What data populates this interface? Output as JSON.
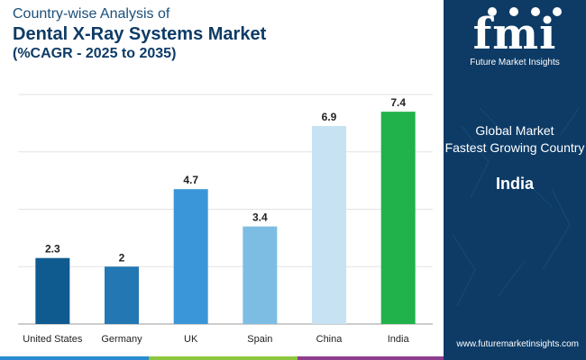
{
  "title": {
    "line1": "Country-wise Analysis of",
    "line2": "Dental X-Ray Systems Market",
    "line3": "(%CAGR - 2025 to 2035)"
  },
  "chart_data": {
    "type": "bar",
    "title": "Country-wise Analysis of Dental X-Ray Systems Market (%CAGR - 2025 to 2035)",
    "categories": [
      "United States",
      "Germany",
      "UK",
      "Spain",
      "China",
      "India"
    ],
    "values": [
      2.3,
      2,
      4.7,
      3.4,
      6.9,
      7.4
    ],
    "value_labels": [
      "2.3",
      "2",
      "4.7",
      "3.4",
      "6.9",
      "7.4"
    ],
    "colors": [
      "#0f5b8f",
      "#2377b3",
      "#3a96d8",
      "#7dbde4",
      "#c6e2f3",
      "#21b24b"
    ],
    "xlabel": "",
    "ylabel": "",
    "ylim": [
      0,
      8
    ],
    "grid": true
  },
  "panel": {
    "logo_text": "fmi",
    "brand": "Future Market Insights",
    "label_line1": "Global Market",
    "label_line2": "Fastest Growing Country",
    "value": "India",
    "website": "www.futuremarketinsights.com"
  },
  "colors": {
    "panel_bg": "#0d3b66",
    "footer": [
      "#2a8bd1",
      "#8cc63f",
      "#8e3e8f",
      "#0d3b66"
    ]
  }
}
